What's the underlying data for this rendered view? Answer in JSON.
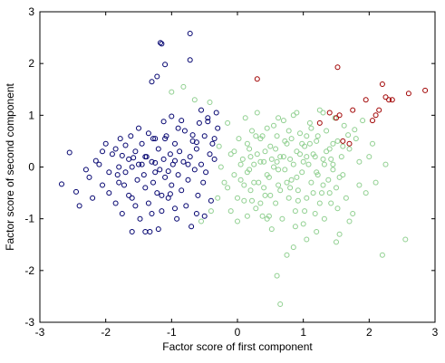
{
  "chart_data": {
    "type": "scatter",
    "title": "",
    "xlabel": "Factor score of first component",
    "ylabel": "Factor score of second component",
    "xlim": [
      -3,
      3
    ],
    "ylim": [
      -3,
      3
    ],
    "xticks": [
      -3,
      -2,
      -1,
      0,
      1,
      2,
      3
    ],
    "yticks": [
      -3,
      -2,
      -1,
      0,
      1,
      2,
      3
    ],
    "grid": false,
    "legend": "none",
    "colors": {
      "series1": "#00006e",
      "series2": "#8fcf8f",
      "series3": "#a00000"
    },
    "series": [
      {
        "color": "#00006e",
        "points": [
          [
            -2.67,
            -0.33
          ],
          [
            -2.55,
            0.28
          ],
          [
            -2.45,
            -0.48
          ],
          [
            -2.4,
            -0.75
          ],
          [
            -2.3,
            -0.05
          ],
          [
            -2.25,
            -0.2
          ],
          [
            -2.15,
            0.12
          ],
          [
            -2.1,
            0.05
          ],
          [
            -2.05,
            -0.35
          ],
          [
            -2.0,
            0.45
          ],
          [
            -1.95,
            -0.5
          ],
          [
            -1.9,
            0.25
          ],
          [
            -1.85,
            0.35
          ],
          [
            -1.82,
            -0.15
          ],
          [
            -1.8,
            0.0
          ],
          [
            -1.78,
            0.55
          ],
          [
            -1.75,
            -0.9
          ],
          [
            -1.72,
            -0.35
          ],
          [
            -1.7,
            -0.1
          ],
          [
            -1.65,
            0.15
          ],
          [
            -1.62,
            0.6
          ],
          [
            -1.6,
            -0.6
          ],
          [
            -1.55,
            0.3
          ],
          [
            -1.52,
            -0.25
          ],
          [
            -1.5,
            0.05
          ],
          [
            -1.48,
            -1.0
          ],
          [
            -1.45,
            0.45
          ],
          [
            -1.42,
            -0.15
          ],
          [
            -1.4,
            -0.4
          ],
          [
            -1.38,
            0.2
          ],
          [
            -1.35,
            -0.7
          ],
          [
            -1.33,
            -1.25
          ],
          [
            -1.3,
            0.1
          ],
          [
            -1.28,
            -0.3
          ],
          [
            -1.25,
            0.55
          ],
          [
            -1.22,
            -0.5
          ],
          [
            -1.2,
            0.35
          ],
          [
            -1.18,
            -0.05
          ],
          [
            -1.15,
            -0.85
          ],
          [
            -1.12,
            0.15
          ],
          [
            -1.1,
            -0.2
          ],
          [
            -1.08,
            0.6
          ],
          [
            -1.05,
            -0.6
          ],
          [
            -1.02,
            0.25
          ],
          [
            -1.0,
            -0.35
          ],
          [
            -0.98,
            0.05
          ],
          [
            -0.95,
            0.45
          ],
          [
            -0.92,
            -1.0
          ],
          [
            -0.9,
            -0.15
          ],
          [
            -0.88,
            0.3
          ],
          [
            -0.85,
            -0.45
          ],
          [
            -0.82,
            0.1
          ],
          [
            -0.8,
            0.7
          ],
          [
            -0.78,
            -0.75
          ],
          [
            -0.75,
            -0.25
          ],
          [
            -0.72,
            0.2
          ],
          [
            -0.7,
            -1.15
          ],
          [
            -0.68,
            0.5
          ],
          [
            -0.65,
            -0.05
          ],
          [
            -0.62,
            0.35
          ],
          [
            -0.6,
            -0.55
          ],
          [
            -0.58,
            0.85
          ],
          [
            -0.55,
            0.05
          ],
          [
            -0.52,
            -0.3
          ],
          [
            -0.5,
            0.6
          ],
          [
            -0.48,
            -0.1
          ],
          [
            -0.45,
            0.95
          ],
          [
            -0.42,
            0.25
          ],
          [
            -0.4,
            -0.65
          ],
          [
            -0.38,
            0.45
          ],
          [
            -0.35,
            0.15
          ],
          [
            -0.32,
            1.05
          ],
          [
            -0.3,
            0.75
          ],
          [
            -0.55,
            1.1
          ],
          [
            -0.45,
            0.88
          ],
          [
            -1.6,
            -1.25
          ],
          [
            -1.4,
            -1.25
          ],
          [
            -1.2,
            -1.2
          ],
          [
            -1.15,
            2.38
          ],
          [
            -1.17,
            2.4
          ],
          [
            -1.22,
            1.75
          ],
          [
            -1.3,
            1.65
          ],
          [
            -1.1,
            1.98
          ],
          [
            -0.72,
            2.58
          ],
          [
            -0.72,
            2.07
          ],
          [
            -1.0,
            0.98
          ],
          [
            -1.12,
            0.88
          ],
          [
            -1.28,
            0.55
          ],
          [
            -1.55,
            -0.75
          ],
          [
            -1.6,
            0.0
          ],
          [
            -1.7,
            0.42
          ],
          [
            -1.45,
            0.05
          ],
          [
            -1.35,
            0.65
          ],
          [
            -1.25,
            0.08
          ],
          [
            -1.05,
            -0.08
          ],
          [
            -0.9,
            0.75
          ],
          [
            -1.65,
            -0.55
          ],
          [
            -1.95,
            -0.1
          ],
          [
            -2.2,
            -0.6
          ],
          [
            -1.3,
            -0.9
          ],
          [
            -0.95,
            -0.8
          ],
          [
            -0.75,
            0.05
          ],
          [
            -0.62,
            -0.9
          ],
          [
            -1.8,
            -0.3
          ],
          [
            -1.5,
            0.75
          ],
          [
            -1.25,
            -0.1
          ],
          [
            -1.4,
            0.2
          ],
          [
            -1.1,
            0.55
          ],
          [
            -2.05,
            0.3
          ],
          [
            -1.85,
            -0.7
          ],
          [
            -1.15,
            -0.55
          ],
          [
            -0.85,
            0.9
          ],
          [
            -0.62,
            0.48
          ],
          [
            -0.68,
            0.62
          ],
          [
            -0.95,
            0.12
          ],
          [
            -1.02,
            -0.52
          ],
          [
            -1.58,
            0.18
          ],
          [
            -1.75,
            0.22
          ],
          [
            -0.5,
            -0.95
          ],
          [
            -0.35,
            0.55
          ]
        ]
      },
      {
        "color": "#8fcf8f",
        "points": [
          [
            -1.0,
            1.45
          ],
          [
            -0.82,
            1.55
          ],
          [
            -0.65,
            1.3
          ],
          [
            -0.42,
            1.25
          ],
          [
            -0.55,
            -1.05
          ],
          [
            -0.4,
            -0.85
          ],
          [
            -0.3,
            -0.6
          ],
          [
            -0.28,
            0.4
          ],
          [
            -0.25,
            0.0
          ],
          [
            -0.2,
            -0.3
          ],
          [
            -0.15,
            0.85
          ],
          [
            -0.1,
            -0.85
          ],
          [
            -0.05,
            0.3
          ],
          [
            0.0,
            -1.05
          ],
          [
            0.02,
            0.55
          ],
          [
            0.05,
            -0.25
          ],
          [
            0.08,
            0.15
          ],
          [
            0.1,
            -0.65
          ],
          [
            0.12,
            0.95
          ],
          [
            0.15,
            -0.1
          ],
          [
            0.18,
            0.35
          ],
          [
            0.2,
            -0.45
          ],
          [
            0.22,
            0.7
          ],
          [
            0.25,
            0.05
          ],
          [
            0.28,
            -0.8
          ],
          [
            0.3,
            0.25
          ],
          [
            0.32,
            -0.3
          ],
          [
            0.35,
            0.55
          ],
          [
            0.38,
            -0.95
          ],
          [
            0.4,
            0.1
          ],
          [
            0.42,
            -0.55
          ],
          [
            0.45,
            0.75
          ],
          [
            0.48,
            -0.2
          ],
          [
            0.5,
            0.4
          ],
          [
            0.52,
            -1.2
          ],
          [
            0.55,
            0.0
          ],
          [
            0.58,
            -0.7
          ],
          [
            0.6,
            0.6
          ],
          [
            0.62,
            -0.35
          ],
          [
            0.65,
            0.2
          ],
          [
            0.68,
            -1.0
          ],
          [
            0.7,
            0.9
          ],
          [
            0.72,
            -0.05
          ],
          [
            0.75,
            0.45
          ],
          [
            0.78,
            -0.6
          ],
          [
            0.8,
            0.15
          ],
          [
            0.82,
            -0.25
          ],
          [
            0.85,
            1.0
          ],
          [
            0.88,
            -0.85
          ],
          [
            0.9,
            0.3
          ],
          [
            0.92,
            -0.45
          ],
          [
            0.95,
            0.65
          ],
          [
            0.98,
            -0.1
          ],
          [
            1.0,
            -1.1
          ],
          [
            1.02,
            0.4
          ],
          [
            1.05,
            -0.6
          ],
          [
            1.08,
            0.05
          ],
          [
            1.1,
            0.85
          ],
          [
            1.12,
            -0.3
          ],
          [
            1.15,
            0.25
          ],
          [
            1.18,
            -0.9
          ],
          [
            1.2,
            0.5
          ],
          [
            1.22,
            -0.15
          ],
          [
            1.25,
            1.1
          ],
          [
            1.28,
            -0.5
          ],
          [
            1.3,
            0.15
          ],
          [
            1.32,
            -1.0
          ],
          [
            1.35,
            0.7
          ],
          [
            1.38,
            -0.25
          ],
          [
            1.4,
            0.35
          ],
          [
            1.42,
            -0.7
          ],
          [
            1.45,
            0.05
          ],
          [
            1.48,
            0.95
          ],
          [
            1.5,
            -0.4
          ],
          [
            1.52,
            0.5
          ],
          [
            1.55,
            -1.3
          ],
          [
            1.58,
            0.2
          ],
          [
            1.6,
            -0.15
          ],
          [
            1.62,
            0.8
          ],
          [
            1.65,
            -0.6
          ],
          [
            1.7,
            0.35
          ],
          [
            1.75,
            -0.9
          ],
          [
            1.8,
            0.55
          ],
          [
            1.85,
            0.1
          ],
          [
            1.9,
            0.9
          ],
          [
            1.95,
            -0.5
          ],
          [
            2.0,
            0.2
          ],
          [
            2.1,
            -0.3
          ],
          [
            0.6,
            -2.1
          ],
          [
            0.65,
            -2.65
          ],
          [
            0.75,
            -1.7
          ],
          [
            0.85,
            -1.55
          ],
          [
            1.05,
            -1.4
          ],
          [
            1.5,
            -1.45
          ],
          [
            2.2,
            -1.7
          ],
          [
            2.25,
            0.05
          ],
          [
            2.55,
            -1.4
          ],
          [
            1.45,
            -0.05
          ],
          [
            0.25,
            -0.3
          ],
          [
            0.45,
            -0.15
          ],
          [
            0.65,
            -0.45
          ],
          [
            0.85,
            0.05
          ],
          [
            1.05,
            0.2
          ],
          [
            1.25,
            -0.7
          ],
          [
            0.15,
            0.45
          ],
          [
            0.35,
            0.1
          ],
          [
            0.55,
            0.8
          ],
          [
            0.75,
            -0.3
          ],
          [
            0.95,
            0.25
          ],
          [
            1.15,
            -0.5
          ],
          [
            1.35,
            0.3
          ],
          [
            1.55,
            -0.2
          ],
          [
            -0.1,
            0.25
          ],
          [
            0.05,
            0.05
          ],
          [
            0.22,
            -0.65
          ],
          [
            0.42,
            0.3
          ],
          [
            0.62,
            -0.05
          ],
          [
            0.82,
            0.55
          ],
          [
            1.02,
            -0.85
          ],
          [
            1.22,
            0.6
          ],
          [
            1.42,
            0.15
          ],
          [
            0.3,
            1.05
          ],
          [
            0.5,
            -0.55
          ],
          [
            0.7,
            0.2
          ],
          [
            0.9,
            -0.2
          ],
          [
            1.1,
            0.45
          ],
          [
            1.3,
            -0.35
          ],
          [
            0.18,
            -0.05
          ],
          [
            0.38,
            0.6
          ],
          [
            0.58,
            0.35
          ],
          [
            0.78,
            0.7
          ],
          [
            0.98,
            0.45
          ],
          [
            1.18,
            0.2
          ],
          [
            0.4,
            -0.4
          ],
          [
            0.6,
            0.1
          ],
          [
            0.8,
            -0.4
          ],
          [
            1.0,
            0.1
          ],
          [
            1.2,
            -0.1
          ],
          [
            1.4,
            -0.5
          ],
          [
            1.6,
            0.4
          ],
          [
            -0.15,
            -0.4
          ],
          [
            0.0,
            -0.6
          ],
          [
            0.2,
            0.2
          ],
          [
            0.9,
            1.05
          ],
          [
            1.3,
            1.05
          ],
          [
            1.68,
            0.62
          ],
          [
            1.78,
            0.72
          ],
          [
            2.05,
            0.45
          ],
          [
            0.45,
            -1.0
          ],
          [
            0.88,
            -1.15
          ],
          [
            1.2,
            -1.25
          ],
          [
            1.7,
            -1.05
          ],
          [
            0.1,
            -0.35
          ],
          [
            0.28,
            0.6
          ],
          [
            0.52,
            0.15
          ],
          [
            0.72,
            0.5
          ],
          [
            0.92,
            -0.65
          ],
          [
            1.12,
            0.75
          ],
          [
            1.32,
            0.05
          ],
          [
            1.52,
            -0.8
          ],
          [
            -0.05,
            -0.15
          ],
          [
            0.35,
            -0.7
          ],
          [
            0.62,
            0.95
          ],
          [
            1.05,
            0.6
          ],
          [
            1.45,
            0.45
          ],
          [
            1.85,
            -0.35
          ],
          [
            0.15,
            -0.95
          ],
          [
            0.48,
            -0.95
          ]
        ]
      },
      {
        "color": "#a00000",
        "points": [
          [
            0.3,
            1.7
          ],
          [
            1.52,
            1.93
          ],
          [
            1.25,
            0.85
          ],
          [
            1.4,
            1.05
          ],
          [
            1.5,
            0.95
          ],
          [
            1.55,
            1.0
          ],
          [
            1.6,
            0.5
          ],
          [
            1.7,
            0.45
          ],
          [
            1.75,
            1.1
          ],
          [
            1.95,
            1.3
          ],
          [
            2.05,
            0.9
          ],
          [
            2.1,
            1.0
          ],
          [
            2.15,
            1.1
          ],
          [
            2.2,
            1.6
          ],
          [
            2.25,
            1.35
          ],
          [
            2.3,
            1.3
          ],
          [
            2.35,
            1.3
          ],
          [
            2.6,
            1.42
          ],
          [
            2.85,
            1.48
          ]
        ]
      }
    ]
  }
}
